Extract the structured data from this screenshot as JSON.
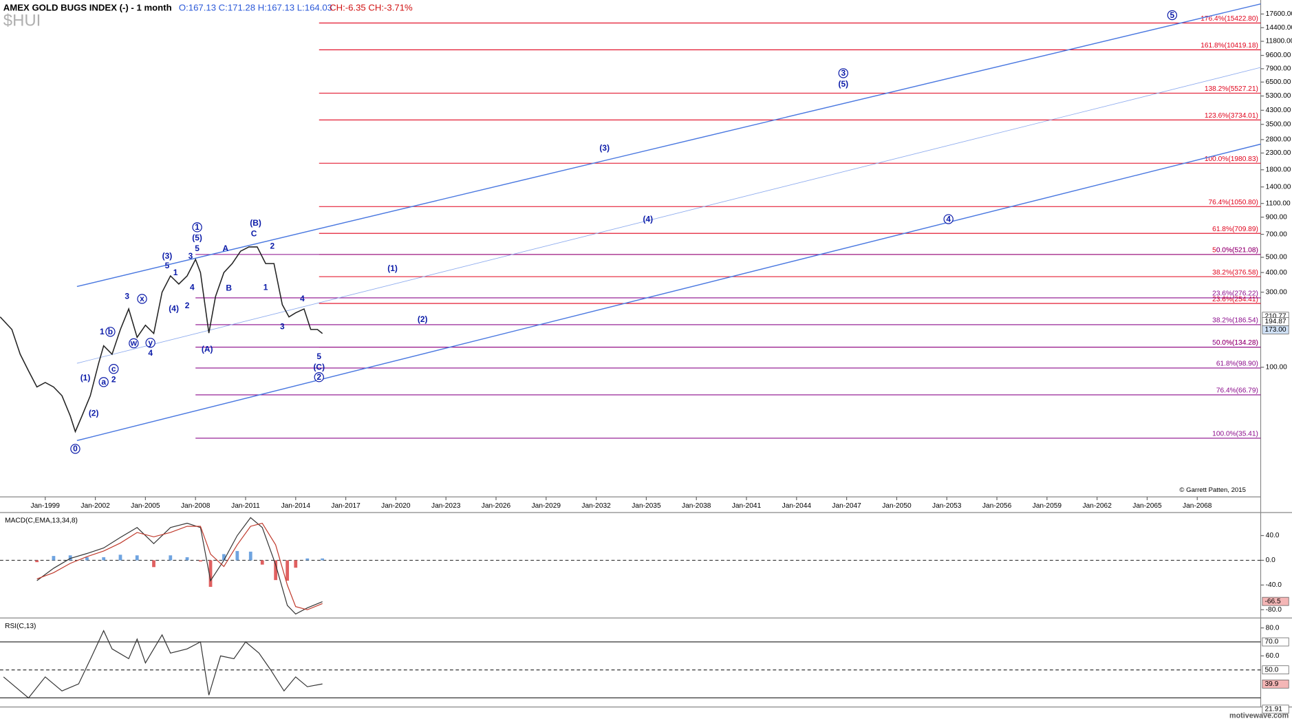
{
  "header": {
    "ohlc": "O:167.13  C:171.28  H:167.13  L:164.03",
    "change": "CH:-6.35  CH:-3.71%",
    "copyright": "© Garrett Patten, 2015",
    "brand": "motivewave.com"
  },
  "chart_data": [
    {
      "type": "line",
      "title": "AMEX GOLD BUGS INDEX (-) - 1 month",
      "subtitle": "$HUI",
      "log_scale": true,
      "color": "#222222",
      "xlim": [
        1996.29,
        2071.8
      ],
      "ylim": [
        15,
        21600
      ],
      "xticks": [
        {
          "value": 1999,
          "label": "Jan-1999"
        },
        {
          "value": 2002,
          "label": "Jan-2002"
        },
        {
          "value": 2005,
          "label": "Jan-2005"
        },
        {
          "value": 2008,
          "label": "Jan-2008"
        },
        {
          "value": 2011,
          "label": "Jan-2011"
        },
        {
          "value": 2014,
          "label": "Jan-2014"
        },
        {
          "value": 2017,
          "label": "Jan-2017"
        },
        {
          "value": 2020,
          "label": "Jan-2020"
        },
        {
          "value": 2023,
          "label": "Jan-2023"
        },
        {
          "value": 2026,
          "label": "Jan-2026"
        },
        {
          "value": 2029,
          "label": "Jan-2029"
        },
        {
          "value": 2032,
          "label": "Jan-2032"
        },
        {
          "value": 2035,
          "label": "Jan-2035"
        },
        {
          "value": 2038,
          "label": "Jan-2038"
        },
        {
          "value": 2041,
          "label": "Jan-2041"
        },
        {
          "value": 2044,
          "label": "Jan-2044"
        },
        {
          "value": 2047,
          "label": "Jan-2047"
        },
        {
          "value": 2050,
          "label": "Jan-2050"
        },
        {
          "value": 2053,
          "label": "Jan-2053"
        },
        {
          "value": 2056,
          "label": "Jan-2056"
        },
        {
          "value": 2059,
          "label": "Jan-2059"
        },
        {
          "value": 2062,
          "label": "Jan-2062"
        },
        {
          "value": 2065,
          "label": "Jan-2065"
        },
        {
          "value": 2068,
          "label": "Jan-2068"
        }
      ],
      "yticks": [
        {
          "value": 17600,
          "label": "17600.00"
        },
        {
          "value": 14400,
          "label": "14400.00"
        },
        {
          "value": 11800,
          "label": "11800.00"
        },
        {
          "value": 9600,
          "label": "9600.00"
        },
        {
          "value": 7900,
          "label": "7900.00"
        },
        {
          "value": 6500,
          "label": "6500.00"
        },
        {
          "value": 5300,
          "label": "5300.00"
        },
        {
          "value": 4300,
          "label": "4300.00"
        },
        {
          "value": 3500,
          "label": "3500.00"
        },
        {
          "value": 2800,
          "label": "2800.00"
        },
        {
          "value": 2300,
          "label": "2300.00"
        },
        {
          "value": 1800,
          "label": "1800.00"
        },
        {
          "value": 1400,
          "label": "1400.00"
        },
        {
          "value": 1100,
          "label": "1100.00"
        },
        {
          "value": 900,
          "label": "900.00"
        },
        {
          "value": 700,
          "label": "700.00"
        },
        {
          "value": 500,
          "label": "500.00"
        },
        {
          "value": 400,
          "label": "400.00"
        },
        {
          "value": 300,
          "label": "300.00"
        },
        {
          "value": 100,
          "label": "100.00"
        }
      ],
      "x": [
        1996.3,
        1997,
        1997.5,
        1998,
        1998.5,
        1999,
        1999.5,
        2000,
        2000.5,
        2000.8,
        2001.2,
        2001.7,
        2002.2,
        2002.5,
        2003,
        2003.5,
        2004,
        2004.5,
        2005,
        2005.5,
        2006,
        2006.5,
        2007,
        2007.5,
        2008,
        2008.3,
        2008.8,
        2009.2,
        2009.7,
        2010.2,
        2010.7,
        2011.2,
        2011.7,
        2012.2,
        2012.7,
        2013.2,
        2013.6,
        2014,
        2014.5,
        2014.9,
        2015.3,
        2015.6
      ],
      "values": [
        209,
        174,
        121,
        95,
        75,
        80,
        75,
        66,
        49,
        39,
        49,
        66,
        106,
        137,
        121,
        174,
        235,
        155,
        185,
        164,
        300,
        381,
        338,
        381,
        485,
        400,
        165,
        282,
        400,
        456,
        547,
        582,
        582,
        456,
        456,
        250,
        209,
        222,
        235,
        174,
        174,
        164
      ],
      "levels": [
        {
          "label": "176.4%(15422.80)",
          "value": 15422.8,
          "start": 2015.4,
          "color": "#e0001a"
        },
        {
          "label": "161.8%(10419.18)",
          "value": 10419.18,
          "start": 2015.4,
          "color": "#e0001a"
        },
        {
          "label": "138.2%(5527.21)",
          "value": 5527.21,
          "start": 2015.4,
          "color": "#e0001a"
        },
        {
          "label": "123.6%(3734.01)",
          "value": 3734.01,
          "start": 2015.4,
          "color": "#e0001a"
        },
        {
          "label": "100.0%(1980.83)",
          "value": 1980.83,
          "start": 2015.4,
          "color": "#e0001a"
        },
        {
          "label": "76.4%(1050.80)",
          "value": 1050.8,
          "start": 2015.4,
          "color": "#e0001a"
        },
        {
          "label": "61.8%(709.89)",
          "value": 709.89,
          "start": 2015.4,
          "color": "#e0001a"
        },
        {
          "label": "50.0%(521.08)",
          "value": 521.08,
          "start": 2015.4,
          "color": "#e0001a"
        },
        {
          "label": "38.2%(376.58)",
          "value": 376.58,
          "start": 2015.4,
          "color": "#e0001a"
        },
        {
          "label": "23.6%(254.41)",
          "value": 254.41,
          "start": 2015.4,
          "color": "#e0001a"
        },
        {
          "label": "0.0%(134.28)",
          "value": 134.28,
          "start": 2015.4,
          "color": "#e0001a"
        },
        {
          "label": "0.0%(521.08)",
          "value": 521.08,
          "start": 2008.0,
          "color": "#8b0a8b"
        },
        {
          "label": "23.6%(276.22)",
          "value": 276.22,
          "start": 2008.0,
          "color": "#8b0a8b"
        },
        {
          "label": "38.2%(186.54)",
          "value": 186.54,
          "start": 2008.0,
          "color": "#8b0a8b"
        },
        {
          "label": "50.0%(134.28)",
          "value": 134.28,
          "start": 2008.0,
          "color": "#8b0a8b"
        },
        {
          "label": "61.8%(98.90)",
          "value": 98.9,
          "start": 2008.0,
          "color": "#8b0a8b"
        },
        {
          "label": "76.4%(66.79)",
          "value": 66.79,
          "start": 2008.0,
          "color": "#8b0a8b"
        },
        {
          "label": "100.0%(35.41)",
          "value": 35.41,
          "start": 2008.0,
          "color": "#8b0a8b"
        }
      ],
      "trendlines": [
        {
          "x": [
            2000.9,
            2071.8
          ],
          "y": [
            326,
            20400
          ],
          "color": "#4a78e0",
          "width": 1.2
        },
        {
          "x": [
            2000.9,
            2071.8
          ],
          "y": [
            106,
            8050
          ],
          "color": "#8aa8ee",
          "width": 0.7
        },
        {
          "x": [
            2000.9,
            2071.8
          ],
          "y": [
            34.2,
            2620
          ],
          "color": "#4a78e0",
          "width": 1.2
        }
      ],
      "annotations": [
        {
          "text": "0",
          "x": 2000.8,
          "y": 30.3,
          "circled": true
        },
        {
          "text": "(1)",
          "x": 2001.4,
          "y": 85.5
        },
        {
          "text": "(2)",
          "x": 2001.9,
          "y": 50.9
        },
        {
          "text": "a",
          "x": 2002.5,
          "y": 80.5,
          "circled": true
        },
        {
          "text": "1",
          "x": 2002.4,
          "y": 168
        },
        {
          "text": "b",
          "x": 2002.9,
          "y": 168,
          "circled": true
        },
        {
          "text": "c",
          "x": 2003.1,
          "y": 97.6,
          "circled": true
        },
        {
          "text": "2",
          "x": 2003.1,
          "y": 83.5
        },
        {
          "text": "3",
          "x": 2003.9,
          "y": 282
        },
        {
          "text": "w",
          "x": 2004.3,
          "y": 142,
          "circled": true
        },
        {
          "text": "x",
          "x": 2004.8,
          "y": 272,
          "circled": true
        },
        {
          "text": "y",
          "x": 2005.3,
          "y": 143,
          "circled": true
        },
        {
          "text": "4",
          "x": 2005.3,
          "y": 123
        },
        {
          "text": "(3)",
          "x": 2006.3,
          "y": 510
        },
        {
          "text": "5",
          "x": 2006.3,
          "y": 441
        },
        {
          "text": "1",
          "x": 2006.8,
          "y": 400
        },
        {
          "text": "(4)",
          "x": 2006.7,
          "y": 235
        },
        {
          "text": "2",
          "x": 2007.5,
          "y": 247
        },
        {
          "text": "3",
          "x": 2007.7,
          "y": 510
        },
        {
          "text": "4",
          "x": 2007.8,
          "y": 322
        },
        {
          "text": "1",
          "x": 2008.1,
          "y": 776,
          "circled": true
        },
        {
          "text": "(5)",
          "x": 2008.1,
          "y": 663
        },
        {
          "text": "5",
          "x": 2008.1,
          "y": 567
        },
        {
          "text": "(A)",
          "x": 2008.7,
          "y": 130
        },
        {
          "text": "A",
          "x": 2009.8,
          "y": 567
        },
        {
          "text": "B",
          "x": 2010.0,
          "y": 318
        },
        {
          "text": "(B)",
          "x": 2011.6,
          "y": 825
        },
        {
          "text": "C",
          "x": 2011.5,
          "y": 705
        },
        {
          "text": "2",
          "x": 2012.6,
          "y": 588
        },
        {
          "text": "1",
          "x": 2012.2,
          "y": 322
        },
        {
          "text": "4",
          "x": 2014.4,
          "y": 272
        },
        {
          "text": "3",
          "x": 2013.2,
          "y": 181
        },
        {
          "text": "5",
          "x": 2015.4,
          "y": 117
        },
        {
          "text": "(C)",
          "x": 2015.4,
          "y": 100
        },
        {
          "text": "2",
          "x": 2015.4,
          "y": 86.5,
          "circled": true
        },
        {
          "text": "(1)",
          "x": 2019.8,
          "y": 425
        },
        {
          "text": "(2)",
          "x": 2021.6,
          "y": 201
        },
        {
          "text": "(3)",
          "x": 2032.5,
          "y": 2470
        },
        {
          "text": "(4)",
          "x": 2035.1,
          "y": 874
        },
        {
          "text": "3",
          "x": 2046.8,
          "y": 7400,
          "circled": true
        },
        {
          "text": "(5)",
          "x": 2046.8,
          "y": 6300
        },
        {
          "text": "4",
          "x": 2053.1,
          "y": 874,
          "circled": true
        },
        {
          "text": "5",
          "x": 2066.5,
          "y": 17300,
          "circled": true
        }
      ],
      "badges": [
        {
          "label": "210.77",
          "value": 210.77,
          "color": "#ffffff"
        },
        {
          "label": "194.87",
          "value": 194.87,
          "color": "#ffffff"
        },
        {
          "label": "173.00",
          "value": 173.0,
          "color": "#cfe0f5"
        }
      ]
    },
    {
      "type": "macd",
      "title": "MACD(C,EMA,13,34,8)",
      "xlim": [
        1996.29,
        2071.8
      ],
      "ylim": [
        -90.7,
        77.3
      ],
      "yticks": [
        {
          "value": 40,
          "label": "40.0"
        },
        {
          "value": 0,
          "label": "0.0"
        },
        {
          "value": -40,
          "label": "-40.0"
        },
        {
          "value": -80,
          "label": "-80.0"
        }
      ],
      "x": [
        1998.5,
        1999.5,
        2000.5,
        2001.5,
        2002.5,
        2003.5,
        2004.5,
        2005.5,
        2006.5,
        2007.5,
        2008.3,
        2008.9,
        2009.7,
        2010.5,
        2011.3,
        2012,
        2012.8,
        2013.5,
        2014,
        2014.7,
        2015.6
      ],
      "series": [
        {
          "color": "#333333",
          "values": [
            -33,
            -13,
            3,
            11,
            20,
            37,
            53,
            27,
            53,
            60,
            53,
            -33,
            0,
            40,
            69,
            53,
            -7,
            -73,
            -87,
            -77,
            -67
          ]
        },
        {
          "color": "#c0392b",
          "values": [
            -30,
            -20,
            -5,
            6,
            15,
            28,
            45,
            38,
            45,
            55,
            55,
            10,
            -10,
            25,
            55,
            60,
            25,
            -40,
            -75,
            -80,
            -70
          ]
        }
      ],
      "histogram": [
        -3,
        7,
        8,
        5,
        5,
        9,
        8,
        -11,
        8,
        5,
        -2,
        -43,
        10,
        15,
        14,
        -7,
        -32,
        -33,
        -12,
        3,
        3
      ],
      "badges": [
        {
          "label": "-66.5",
          "value": -66.5,
          "color": "#f4b6b6"
        }
      ]
    },
    {
      "type": "rsi",
      "title": "RSI(C,13)",
      "xlim": [
        1996.29,
        2071.8
      ],
      "ylim": [
        23.5,
        85.9
      ],
      "yticks": [
        {
          "value": 80,
          "label": "80.0"
        },
        {
          "value": 60,
          "label": "60.0"
        }
      ],
      "levels": [
        {
          "value": 70,
          "dashed": false
        },
        {
          "value": 50,
          "dashed": true
        },
        {
          "value": 30,
          "dashed": false
        }
      ],
      "x": [
        1996.5,
        1997.5,
        1998,
        1999,
        2000,
        2001,
        2001.8,
        2002.5,
        2003,
        2004,
        2004.5,
        2005,
        2006,
        2006.5,
        2007.5,
        2008.3,
        2008.8,
        2009.5,
        2010.3,
        2011,
        2011.8,
        2012.5,
        2013.3,
        2014,
        2014.7,
        2015.6
      ],
      "values": [
        45,
        35,
        30,
        45,
        35,
        40,
        60,
        78,
        65,
        58,
        72,
        55,
        75,
        62,
        65,
        70,
        32,
        60,
        58,
        70,
        62,
        50,
        35,
        45,
        38,
        40
      ],
      "color": "#333333",
      "badges": [
        {
          "label": "70.0",
          "value": 70,
          "color": "#ffffff"
        },
        {
          "label": "50.0",
          "value": 50,
          "color": "#ffffff"
        },
        {
          "label": "39.9",
          "value": 39.9,
          "color": "#f4b6b6"
        },
        {
          "label": "21.91",
          "value": 21.91,
          "color": "#ffffff"
        }
      ]
    }
  ]
}
